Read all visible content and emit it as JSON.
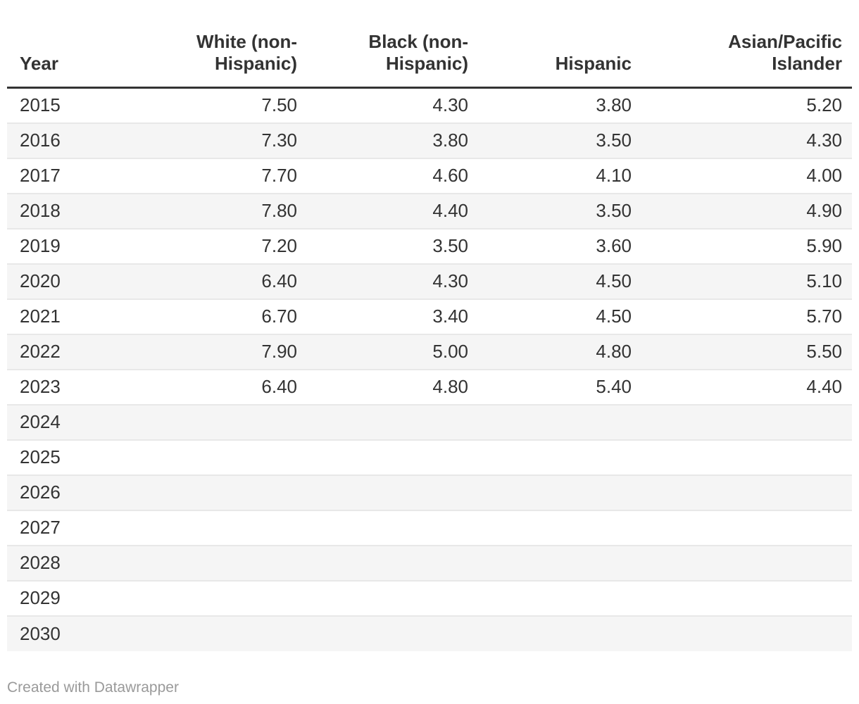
{
  "colors": {
    "text": "#333333",
    "header_rule": "#333333",
    "stripe": "#f5f5f5",
    "row_divider": "#e8e8e8",
    "attribution_text": "#9a9a9a",
    "background": "#ffffff"
  },
  "table": {
    "columns": [
      {
        "key": "year",
        "label": "Year",
        "align": "left"
      },
      {
        "key": "white",
        "label": "White (non-\nHispanic)",
        "align": "right"
      },
      {
        "key": "black",
        "label": "Black (non-\nHispanic)",
        "align": "right"
      },
      {
        "key": "hispanic",
        "label": "Hispanic",
        "align": "right"
      },
      {
        "key": "asian",
        "label": "Asian/Pacific\nIslander",
        "align": "right"
      }
    ],
    "rows": [
      {
        "year": "2015",
        "white": "7.50",
        "black": "4.30",
        "hispanic": "3.80",
        "asian": "5.20"
      },
      {
        "year": "2016",
        "white": "7.30",
        "black": "3.80",
        "hispanic": "3.50",
        "asian": "4.30"
      },
      {
        "year": "2017",
        "white": "7.70",
        "black": "4.60",
        "hispanic": "4.10",
        "asian": "4.00"
      },
      {
        "year": "2018",
        "white": "7.80",
        "black": "4.40",
        "hispanic": "3.50",
        "asian": "4.90"
      },
      {
        "year": "2019",
        "white": "7.20",
        "black": "3.50",
        "hispanic": "3.60",
        "asian": "5.90"
      },
      {
        "year": "2020",
        "white": "6.40",
        "black": "4.30",
        "hispanic": "4.50",
        "asian": "5.10"
      },
      {
        "year": "2021",
        "white": "6.70",
        "black": "3.40",
        "hispanic": "4.50",
        "asian": "5.70"
      },
      {
        "year": "2022",
        "white": "7.90",
        "black": "5.00",
        "hispanic": "4.80",
        "asian": "5.50"
      },
      {
        "year": "2023",
        "white": "6.40",
        "black": "4.80",
        "hispanic": "5.40",
        "asian": "4.40"
      },
      {
        "year": "2024",
        "white": "",
        "black": "",
        "hispanic": "",
        "asian": ""
      },
      {
        "year": "2025",
        "white": "",
        "black": "",
        "hispanic": "",
        "asian": ""
      },
      {
        "year": "2026",
        "white": "",
        "black": "",
        "hispanic": "",
        "asian": ""
      },
      {
        "year": "2027",
        "white": "",
        "black": "",
        "hispanic": "",
        "asian": ""
      },
      {
        "year": "2028",
        "white": "",
        "black": "",
        "hispanic": "",
        "asian": ""
      },
      {
        "year": "2029",
        "white": "",
        "black": "",
        "hispanic": "",
        "asian": ""
      },
      {
        "year": "2030",
        "white": "",
        "black": "",
        "hispanic": "",
        "asian": ""
      }
    ]
  },
  "footer": {
    "attribution": "Created with Datawrapper"
  },
  "chart_data": {
    "type": "table",
    "title": "",
    "columns": [
      "Year",
      "White (non-Hispanic)",
      "Black (non-Hispanic)",
      "Hispanic",
      "Asian/Pacific Islander"
    ],
    "rows": [
      [
        2015,
        7.5,
        4.3,
        3.8,
        5.2
      ],
      [
        2016,
        7.3,
        3.8,
        3.5,
        4.3
      ],
      [
        2017,
        7.7,
        4.6,
        4.1,
        4.0
      ],
      [
        2018,
        7.8,
        4.4,
        3.5,
        4.9
      ],
      [
        2019,
        7.2,
        3.5,
        3.6,
        5.9
      ],
      [
        2020,
        6.4,
        4.3,
        4.5,
        5.1
      ],
      [
        2021,
        6.7,
        3.4,
        4.5,
        5.7
      ],
      [
        2022,
        7.9,
        5.0,
        4.8,
        5.5
      ],
      [
        2023,
        6.4,
        4.8,
        5.4,
        4.4
      ],
      [
        2024,
        null,
        null,
        null,
        null
      ],
      [
        2025,
        null,
        null,
        null,
        null
      ],
      [
        2026,
        null,
        null,
        null,
        null
      ],
      [
        2027,
        null,
        null,
        null,
        null
      ],
      [
        2028,
        null,
        null,
        null,
        null
      ],
      [
        2029,
        null,
        null,
        null,
        null
      ],
      [
        2030,
        null,
        null,
        null,
        null
      ]
    ],
    "layout": {
      "value_format": "2 decimals",
      "numeric_alignment": "right",
      "zebra_striping": true,
      "striped_rows": "even (2016, 2018, ...)"
    }
  }
}
